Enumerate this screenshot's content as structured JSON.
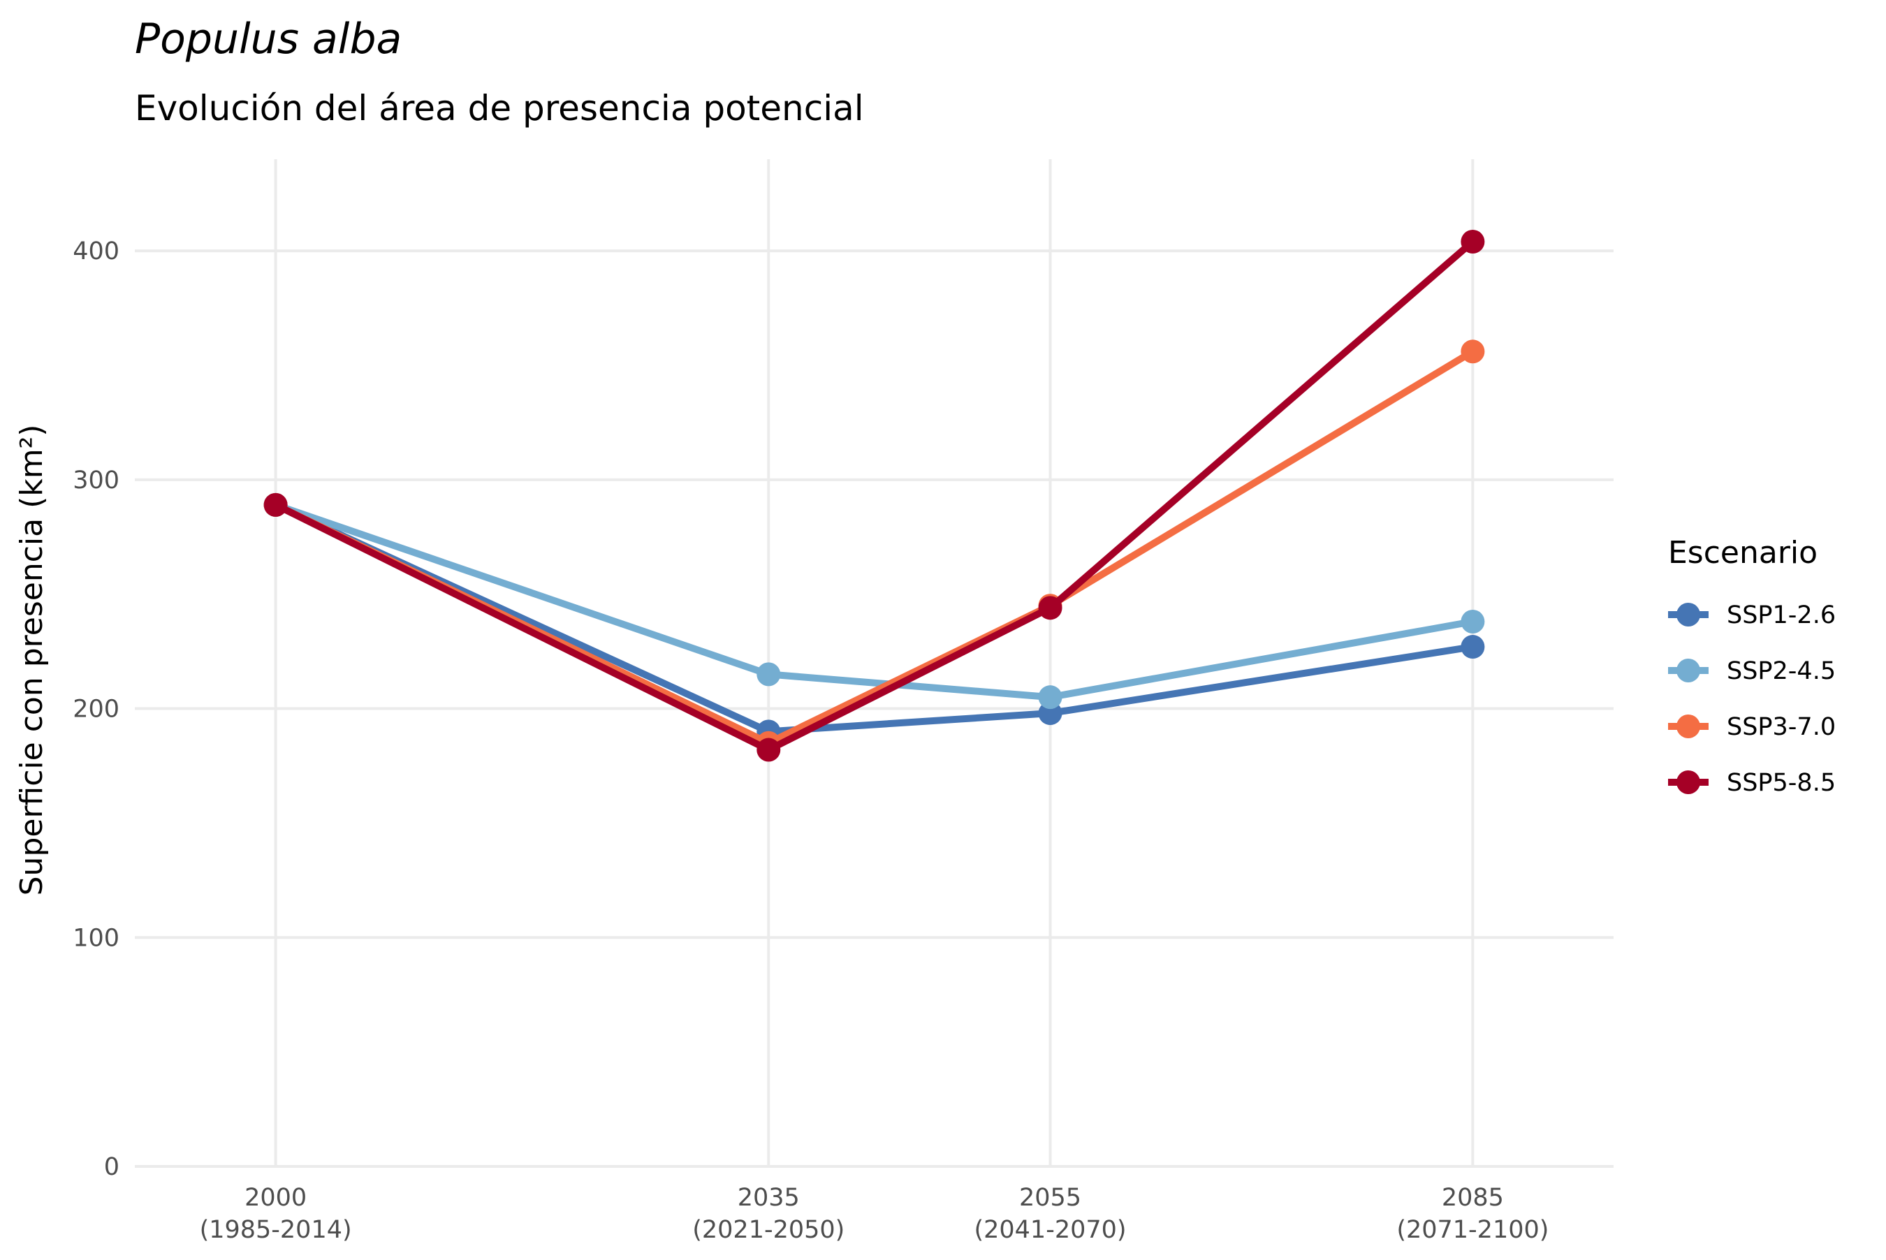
{
  "chart_data": {
    "type": "line",
    "title": "Populus alba",
    "subtitle": "Evolución del área de presencia potencial",
    "ylabel": "Superficie con presencia (km²)",
    "ylim": [
      0,
      440
    ],
    "yticks": [
      "0",
      "100",
      "200",
      "300",
      "400"
    ],
    "ytick_values": [
      0,
      100,
      200,
      300,
      400
    ],
    "x": [
      2000,
      2035,
      2055,
      2085
    ],
    "xlim": [
      1990,
      2095
    ],
    "xtick_labels": [
      {
        "year": "2000",
        "range": "(1985-2014)"
      },
      {
        "year": "2035",
        "range": "(2021-2050)"
      },
      {
        "year": "2055",
        "range": "(2041-2070)"
      },
      {
        "year": "2085",
        "range": "(2071-2100)"
      }
    ],
    "grid": true,
    "legend": {
      "title": "Escenario",
      "position": "right"
    },
    "series": [
      {
        "name": "SSP1-2.6",
        "color": "#4575b4",
        "values": [
          289,
          190,
          198,
          227
        ]
      },
      {
        "name": "SSP2-4.5",
        "color": "#74add1",
        "values": [
          289,
          215,
          205,
          238
        ]
      },
      {
        "name": "SSP3-7.0",
        "color": "#f46d43",
        "values": [
          289,
          185,
          245,
          356
        ]
      },
      {
        "name": "SSP5-8.5",
        "color": "#a50026",
        "values": [
          289,
          182,
          244,
          404
        ]
      }
    ]
  }
}
